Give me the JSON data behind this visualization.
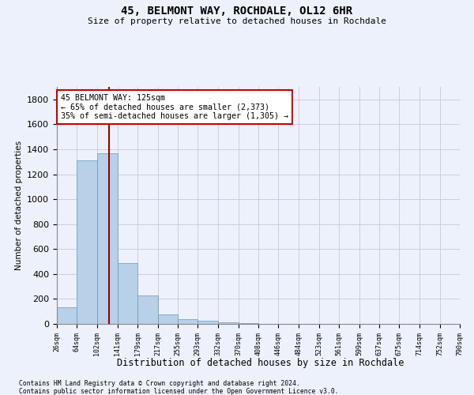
{
  "title1": "45, BELMONT WAY, ROCHDALE, OL12 6HR",
  "title2": "Size of property relative to detached houses in Rochdale",
  "xlabel": "Distribution of detached houses by size in Rochdale",
  "ylabel": "Number of detached properties",
  "footnote1": "Contains HM Land Registry data © Crown copyright and database right 2024.",
  "footnote2": "Contains public sector information licensed under the Open Government Licence v3.0.",
  "bin_edges": [
    26,
    64,
    102,
    141,
    179,
    217,
    255,
    293,
    332,
    370,
    408,
    446,
    484,
    523,
    561,
    599,
    637,
    675,
    714,
    752,
    790
  ],
  "bar_values": [
    135,
    1310,
    1370,
    485,
    225,
    75,
    40,
    25,
    15,
    5,
    0,
    0,
    0,
    0,
    0,
    0,
    0,
    0,
    0,
    0
  ],
  "bar_color": "#b8d0e8",
  "bar_edge_color": "#6699bb",
  "property_line_x": 125,
  "property_line_color": "#990000",
  "annotation_line1": "45 BELMONT WAY: 125sqm",
  "annotation_line2": "← 65% of detached houses are smaller (2,373)",
  "annotation_line3": "35% of semi-detached houses are larger (1,305) →",
  "annotation_box_color": "#ffffff",
  "annotation_box_edge_color": "#cc0000",
  "ylim": [
    0,
    1900
  ],
  "yticks": [
    0,
    200,
    400,
    600,
    800,
    1000,
    1200,
    1400,
    1600,
    1800
  ],
  "bg_color": "#edf1fb",
  "grid_color": "#c8c8d8"
}
